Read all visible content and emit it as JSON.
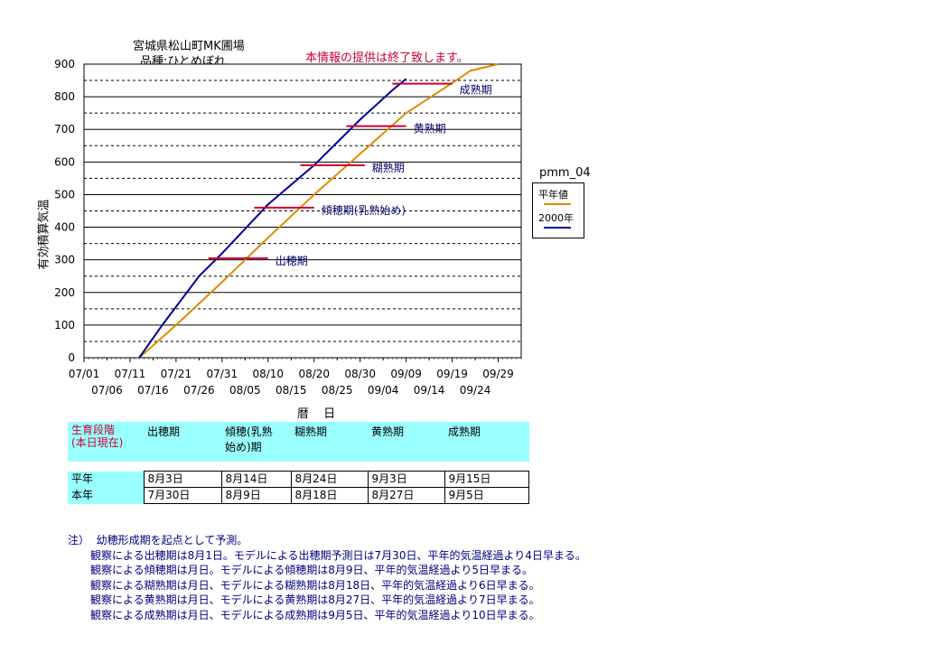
{
  "header": {
    "title_line1": "宮城県松山町MK圃場",
    "title_line2": "品種:ひとめぼれ",
    "notice": "本情報の提供は終了致します。"
  },
  "chart_data": {
    "type": "line",
    "ylabel": "有効積算気温",
    "xlabel": "暦 日",
    "ylim": [
      0,
      900
    ],
    "yticks": [
      "0",
      "100",
      "200",
      "300",
      "400",
      "500",
      "600",
      "700",
      "800",
      "900"
    ],
    "x_ticks_top": [
      "07/01",
      "07/11",
      "07/21",
      "07/31",
      "08/10",
      "08/20",
      "08/30",
      "09/09",
      "09/19",
      "09/29"
    ],
    "x_ticks_bottom": [
      "07/06",
      "07/16",
      "07/26",
      "08/05",
      "08/15",
      "08/25",
      "09/04",
      "09/14",
      "09/24"
    ],
    "x_day_range": [
      0,
      95
    ],
    "legend_title": "pmm_04",
    "series": [
      {
        "name": "平年値",
        "color": "#e08a00",
        "x": [
          12,
          20,
          30,
          40,
          50,
          60,
          70,
          80,
          84,
          90
        ],
        "y": [
          0,
          100,
          232,
          368,
          500,
          625,
          750,
          842,
          880,
          900
        ]
      },
      {
        "name": "2000年",
        "color": "#000099",
        "x": [
          12,
          17,
          25,
          30,
          40,
          50,
          60,
          67,
          70
        ],
        "y": [
          0,
          100,
          250,
          320,
          470,
          590,
          730,
          820,
          855
        ]
      }
    ],
    "stages": [
      {
        "label": "出穂期",
        "y": 305,
        "x1": 27,
        "x2": 40
      },
      {
        "label": "傾穂期(乳熟始め)",
        "y": 460,
        "x1": 37,
        "x2": 50
      },
      {
        "label": "糊熟期",
        "y": 590,
        "x1": 47,
        "x2": 61
      },
      {
        "label": "黄熟期",
        "y": 710,
        "x1": 57,
        "x2": 70
      },
      {
        "label": "成熟期",
        "y": 840,
        "x1": 67,
        "x2": 80
      }
    ]
  },
  "table": {
    "header": [
      "生育段階\n(本日現在)",
      "出穂期",
      "傾穂(乳熟\n始め)期",
      "糊熟期",
      "黄熟期",
      "成熟期"
    ],
    "rows": [
      {
        "label": "平年",
        "cells": [
          "8月3日",
          "8月14日",
          "8月24日",
          "9月3日",
          "9月15日"
        ]
      },
      {
        "label": "本年",
        "cells": [
          "7月30日",
          "8月9日",
          "8月18日",
          "8月27日",
          "9月5日"
        ]
      }
    ]
  },
  "notes": {
    "lead": "注）",
    "lines": [
      "幼穂形成期を起点として予測。",
      "観察による出穂期は8月1日。モデルによる出穂期予測日は7月30日、平年的気温経過より4日早まる。",
      "観察による傾穂期は月日。モデルによる傾穂期は8月9日、平年的気温経過より5日早まる。",
      "観察による糊熟期は月日、モデルによる糊熟期は8月18日、平年的気温経過より6日早まる。",
      "観察による黄熟期は月日、モデルによる黄熟期は8月27日、平年的気温経過より7日早まる。",
      "観察による成熟期は月日、モデルによる成熟期は9月5日、平年的気温経過より10日早まる。"
    ]
  }
}
